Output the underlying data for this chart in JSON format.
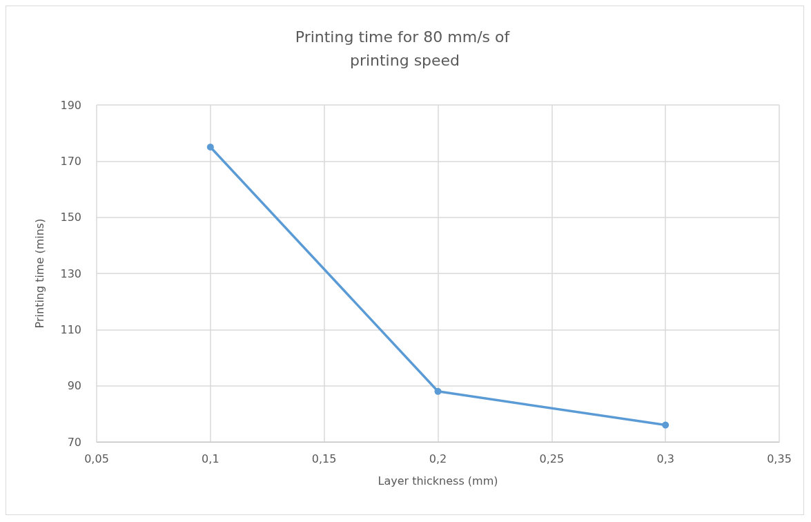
{
  "chart_data": {
    "type": "line",
    "title": "Printing time for 80 mm/s of printing speed",
    "xlabel": "Layer thickness (mm)",
    "ylabel": "Printing time (mins)",
    "x": [
      0.1,
      0.2,
      0.3
    ],
    "series": [
      {
        "color": "#5b9bd5",
        "values": [
          175,
          88,
          76
        ]
      }
    ],
    "xlim": [
      0.05,
      0.35
    ],
    "xticks": [
      {
        "value": 0.05,
        "label": "0,05"
      },
      {
        "value": 0.1,
        "label": "0,1"
      },
      {
        "value": 0.15,
        "label": "0,15"
      },
      {
        "value": 0.2,
        "label": "0,2"
      },
      {
        "value": 0.25,
        "label": "0,25"
      },
      {
        "value": 0.3,
        "label": "0,3"
      },
      {
        "value": 0.35,
        "label": "0,35"
      }
    ],
    "ylim": [
      70,
      190
    ],
    "yticks": [
      70,
      90,
      110,
      130,
      150,
      170,
      190
    ],
    "grid": true,
    "marker": "circle",
    "line_style": "solid"
  }
}
